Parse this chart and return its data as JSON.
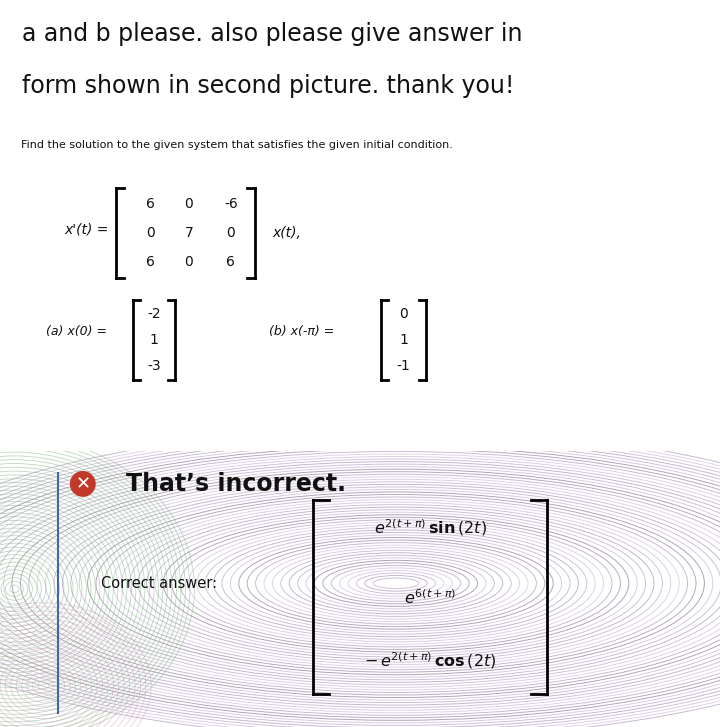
{
  "title_line1": "a and b please. also please give answer in",
  "title_line2": "form shown in second picture. thank you!",
  "problem_text": "Find the solution to the given system that satisfies the given initial condition.",
  "matrix_rows": [
    [
      "6",
      "0",
      "-6"
    ],
    [
      "0",
      "7",
      "0"
    ],
    [
      "6",
      "0",
      "6"
    ]
  ],
  "ic_a_label": "(a) x(0) =",
  "ic_a_vec": [
    "-2",
    "1",
    "-3"
  ],
  "ic_b_label": "(b) x(-π) =",
  "ic_b_vec": [
    "0",
    "1",
    "-1"
  ],
  "incorrect_text": "That’s incorrect.",
  "correct_label": "Correct answer:",
  "incorrect_red": "#c0392b",
  "title_bg": "#ffffff",
  "prob_bg": "#d8d8d8",
  "bot_bg": "#c8bcd0",
  "swirl_colors": [
    "#d8cce0",
    "#ccc0d8",
    "#c4b8cc",
    "#d0c4d8",
    "#dcd0e4",
    "#e0d4e8",
    "#c8bcd0",
    "#b8acbe",
    "#b0a4b8"
  ],
  "green_swirl": "#8ab88a"
}
